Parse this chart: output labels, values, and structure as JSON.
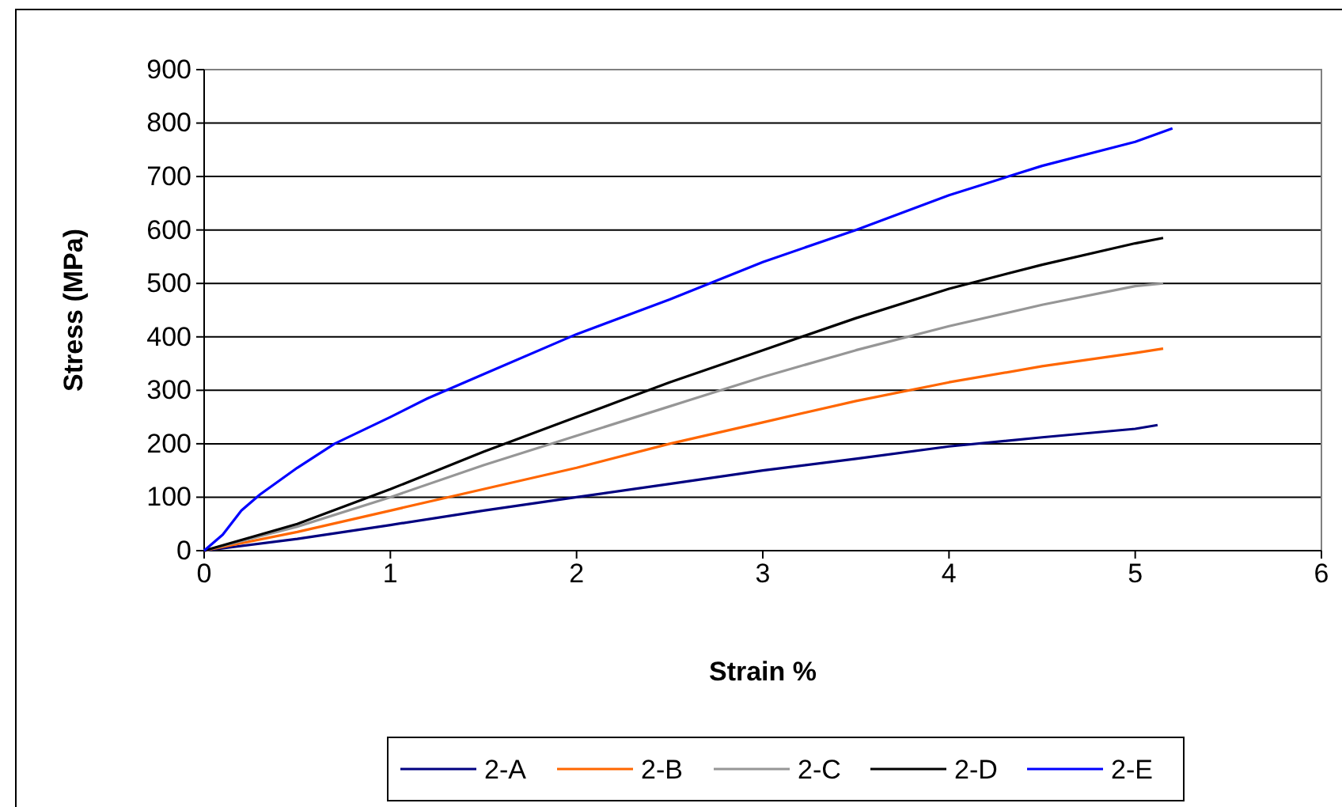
{
  "chart_data": {
    "type": "line",
    "xlabel": "Strain %",
    "ylabel": "Stress (MPa)",
    "xlim": [
      0,
      6
    ],
    "xticks": [
      0,
      1,
      2,
      3,
      4,
      5,
      6
    ],
    "ylim": [
      0,
      900
    ],
    "yticks": [
      0,
      100,
      200,
      300,
      400,
      500,
      600,
      700,
      800,
      900
    ],
    "grid": "y",
    "legend": "bottom",
    "line_style": "solid",
    "marker": "none",
    "series": [
      {
        "name": "2-A",
        "color": "#000080",
        "x": [
          0,
          0.5,
          1,
          1.5,
          2,
          2.5,
          3,
          3.5,
          4,
          4.5,
          5,
          5.12
        ],
        "values": [
          0,
          22,
          48,
          75,
          100,
          125,
          150,
          172,
          195,
          212,
          228,
          235
        ]
      },
      {
        "name": "2-B",
        "color": "#ff6600",
        "x": [
          0,
          0.5,
          1,
          1.5,
          2,
          2.5,
          3,
          3.5,
          4,
          4.5,
          5,
          5.15
        ],
        "values": [
          0,
          35,
          75,
          115,
          155,
          200,
          240,
          280,
          315,
          345,
          370,
          378
        ]
      },
      {
        "name": "2-C",
        "color": "#969696",
        "x": [
          0,
          0.5,
          1,
          1.5,
          2,
          2.5,
          3,
          3.5,
          4,
          4.5,
          5,
          5.15
        ],
        "values": [
          0,
          45,
          100,
          160,
          215,
          270,
          325,
          375,
          420,
          460,
          495,
          500
        ]
      },
      {
        "name": "2-D",
        "color": "#000000",
        "x": [
          0,
          0.5,
          1,
          1.5,
          2,
          2.5,
          3,
          3.5,
          4,
          4.5,
          5,
          5.15
        ],
        "values": [
          0,
          50,
          115,
          185,
          250,
          315,
          375,
          435,
          490,
          535,
          575,
          585
        ]
      },
      {
        "name": "2-E",
        "color": "#0000ff",
        "x": [
          0,
          0.1,
          0.2,
          0.3,
          0.5,
          0.7,
          1,
          1.2,
          1.5,
          2,
          2.5,
          3,
          3.5,
          4,
          4.5,
          5,
          5.2
        ],
        "values": [
          0,
          30,
          75,
          105,
          155,
          200,
          250,
          285,
          330,
          405,
          470,
          540,
          600,
          665,
          720,
          765,
          790
        ]
      }
    ]
  }
}
